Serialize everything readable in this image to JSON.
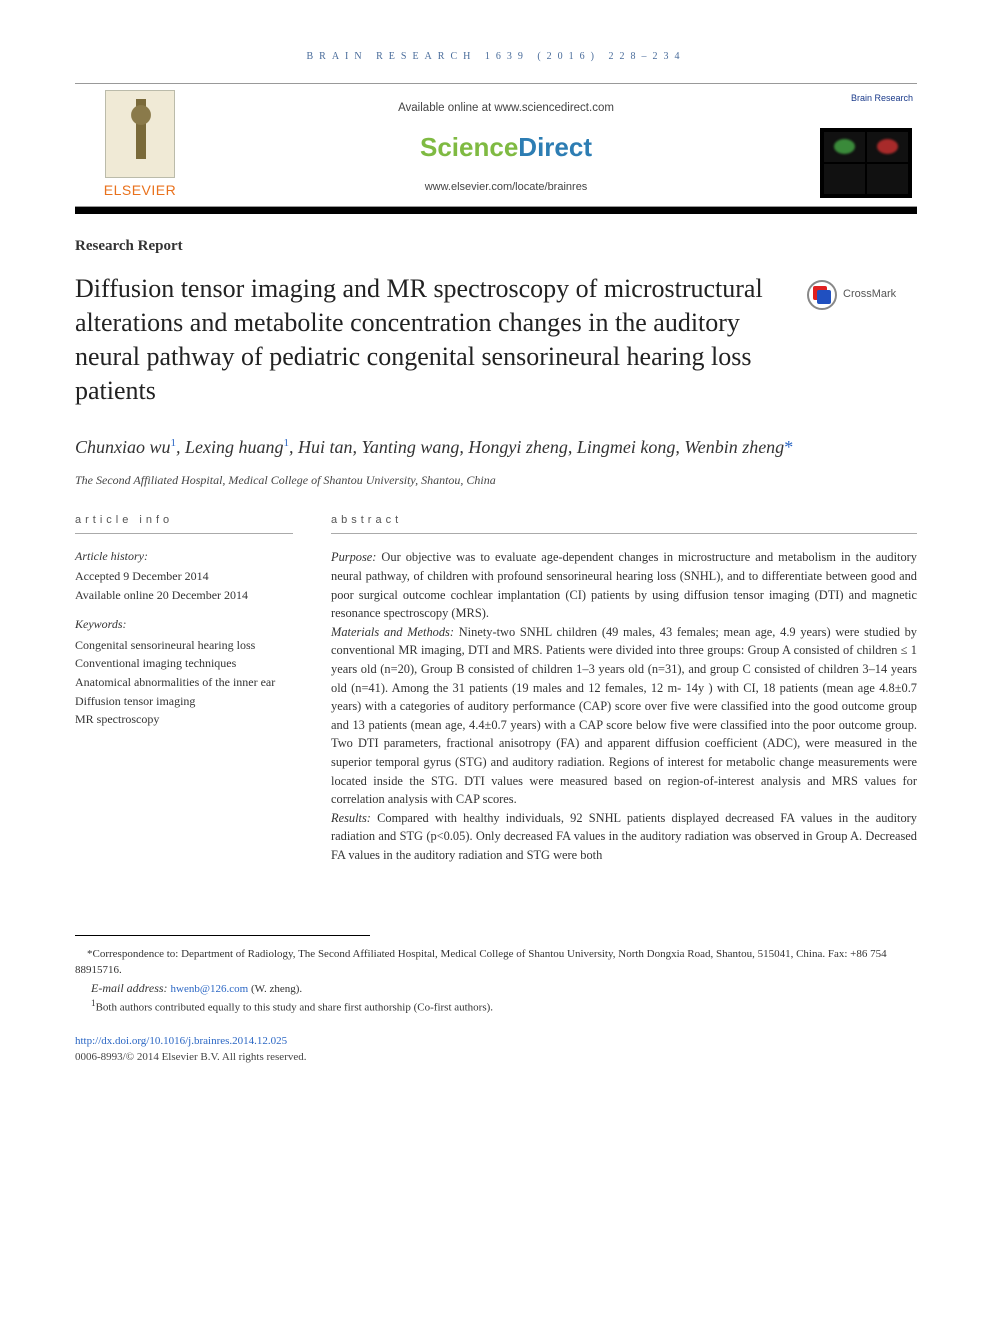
{
  "journal_header": "BRAIN RESEARCH 1639 (2016) 228–234",
  "publisher": {
    "available_line": "Available online at www.sciencedirect.com",
    "logo_left": "Science",
    "logo_right": "Direct",
    "journal_url": "www.elsevier.com/locate/brainres",
    "elsevier": "ELSEVIER",
    "brain_label": "Brain Research"
  },
  "article_type": "Research Report",
  "title": "Diffusion tensor imaging and MR spectroscopy of microstructural alterations and metabolite concentration changes in the auditory neural pathway of pediatric congenital sensorineural hearing loss patients",
  "crossmark": "CrossMark",
  "authors_html": "Chunxiao wu<sup>1</sup>, Lexing huang<sup>1</sup>, Hui tan, Yanting wang, Hongyi zheng, Lingmei kong, Wenbin zheng<span class='corr-star'>*</span>",
  "affiliation": "The Second Affiliated Hospital, Medical College of Shantou University, Shantou, China",
  "info": {
    "head": "article info",
    "history_label": "Article history:",
    "accepted": "Accepted 9 December 2014",
    "online": "Available online 20 December 2014",
    "keywords_label": "Keywords:",
    "keywords": [
      "Congenital sensorineural hearing loss",
      "Conventional imaging techniques",
      "Anatomical abnormalities of the inner ear",
      "Diffusion tensor imaging",
      "MR spectroscopy"
    ]
  },
  "abstract": {
    "head": "abstract",
    "purpose_label": "Purpose:",
    "purpose": " Our objective was to evaluate age-dependent changes in microstructure and metabolism in the auditory neural pathway, of children with profound sensorineural hearing loss (SNHL), and to differentiate between good and poor surgical outcome cochlear implantation (CI) patients by using diffusion tensor imaging (DTI) and magnetic resonance spectroscopy (MRS).",
    "methods_label": "Materials and Methods:",
    "methods": " Ninety-two SNHL children (49 males, 43 females; mean age, 4.9 years) were studied by conventional MR imaging, DTI and MRS. Patients were divided into three groups: Group A consisted of children ≤ 1 years old (n=20), Group B consisted of children 1–3 years old (n=31), and group C consisted of children 3–14 years old (n=41). Among the 31 patients (19 males and 12 females, 12 m- 14y ) with CI, 18 patients (mean age 4.8±0.7 years) with a categories of auditory performance (CAP) score over five were classified into the good outcome group and 13 patients (mean age, 4.4±0.7 years) with a CAP score below five were classified into the poor outcome group. Two DTI parameters, fractional anisotropy (FA) and apparent diffusion coefficient (ADC), were measured in the superior temporal gyrus (STG) and auditory radiation. Regions of interest for metabolic change measurements were located inside the STG. DTI values were measured based on region-of-interest analysis and MRS values for correlation analysis with CAP scores.",
    "results_label": "Results:",
    "results": " Compared with healthy individuals, 92 SNHL patients displayed decreased FA values in the auditory radiation and STG (p<0.05). Only decreased FA values in the auditory radiation was observed in Group A. Decreased FA values in the auditory radiation and STG were both"
  },
  "footnotes": {
    "corr": "*Correspondence to: Department of Radiology, The Second Affiliated Hospital, Medical College of Shantou University, North Dongxia Road, Shantou, 515041, China. Fax: +86 754 88915716.",
    "email_label": "E-mail address: ",
    "email": "hwenb@126.com",
    "email_who": " (W. zheng).",
    "cofirst": "1Both authors contributed equally to this study and share first authorship (Co-first authors)."
  },
  "doi": {
    "url": "http://dx.doi.org/10.1016/j.brainres.2014.12.025",
    "copyright": "0006-8993/© 2014 Elsevier B.V. All rights reserved."
  }
}
